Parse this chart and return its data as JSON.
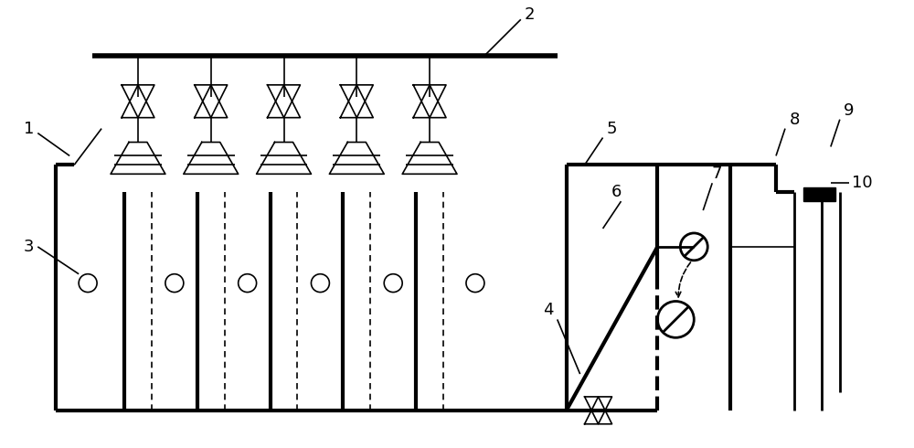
{
  "bg_color": "#ffffff",
  "line_color": "#000000",
  "thick_lw": 3.0,
  "thin_lw": 1.2,
  "medium_lw": 2.0,
  "fig_width": 10.0,
  "fig_height": 4.9,
  "label_fontsize": 13
}
